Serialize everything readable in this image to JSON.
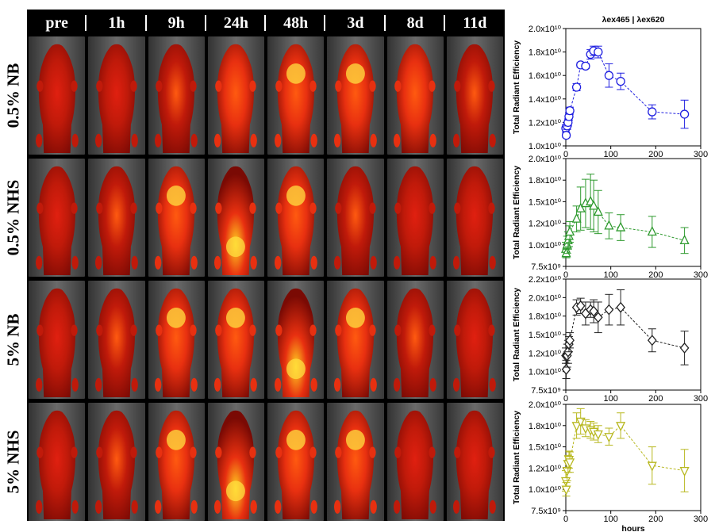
{
  "time_labels": [
    "pre",
    "1h",
    "9h",
    "24h",
    "48h",
    "3d",
    "8d",
    "11d"
  ],
  "row_labels": [
    "0.5% NB",
    "0.5% NHS",
    "5% NB",
    "5% NHS"
  ],
  "chart_title": "λex465 | λex620",
  "colors": {
    "series0": "#1f1fe0",
    "series1": "#2e9a2e",
    "series2": "#222222",
    "series3": "#b8b820"
  },
  "chart_data": [
    {
      "type": "scatter",
      "title": "λex465 | λex620",
      "marker": "circle",
      "ylabel": "Total Radiant Efficiency",
      "xlim": [
        0,
        300
      ],
      "ylim": [
        10000000000.0,
        20000000000.0
      ],
      "yticks": [
        "1.0x10¹⁰",
        "1.2x10¹⁰",
        "1.4x10¹⁰",
        "1.6x10¹⁰",
        "1.8x10¹⁰",
        "2.0x10¹⁰"
      ],
      "xticks": [
        "0",
        "100",
        "200",
        "300"
      ],
      "x": [
        0,
        1,
        3,
        5,
        7,
        9,
        24,
        33,
        44,
        55,
        62,
        72,
        96,
        122,
        192,
        264
      ],
      "y": [
        11500000000.0,
        10900000000.0,
        11700000000.0,
        12000000000.0,
        12500000000.0,
        13000000000.0,
        15000000000.0,
        16900000000.0,
        16800000000.0,
        17800000000.0,
        18100000000.0,
        18000000000.0,
        16000000000.0,
        15500000000.0,
        12900000000.0,
        12700000000.0
      ],
      "err": [
        300000000.0,
        200000000.0,
        300000000.0,
        300000000.0,
        300000000.0,
        300000000.0,
        300000000.0,
        200000000.0,
        200000000.0,
        400000000.0,
        400000000.0,
        500000000.0,
        1000000000.0,
        700000000.0,
        600000000.0,
        1200000000.0
      ]
    },
    {
      "type": "scatter",
      "marker": "triangle-up",
      "ylabel": "Total Radiant Efficiency",
      "xlim": [
        0,
        300
      ],
      "ylim": [
        7500000000.0,
        20000000000.0
      ],
      "yticks": [
        "7.5x10⁹",
        "1.0x10¹⁰",
        "1.2x10¹⁰",
        "1.5x10¹⁰",
        "1.8x10¹⁰",
        "2.0x10¹⁰"
      ],
      "xticks": [
        "0",
        "100",
        "200",
        "300"
      ],
      "x": [
        0,
        1,
        3,
        5,
        7,
        9,
        24,
        33,
        44,
        55,
        62,
        72,
        96,
        122,
        192,
        264
      ],
      "y": [
        9500000000.0,
        9000000000.0,
        10000000000.0,
        10500000000.0,
        11000000000.0,
        11500000000.0,
        13000000000.0,
        14200000000.0,
        14800000000.0,
        15000000000.0,
        14500000000.0,
        13800000000.0,
        12200000000.0,
        12000000000.0,
        11500000000.0,
        10500000000.0
      ],
      "err": [
        800000000.0,
        500000000.0,
        1000000000.0,
        1000000000.0,
        1200000000.0,
        1200000000.0,
        1500000000.0,
        2500000000.0,
        2800000000.0,
        3200000000.0,
        3000000000.0,
        2500000000.0,
        1500000000.0,
        1500000000.0,
        1800000000.0,
        1500000000.0
      ]
    },
    {
      "type": "scatter",
      "marker": "diamond",
      "ylabel": "Total Radiant Efficiency",
      "xlim": [
        0,
        300
      ],
      "ylim": [
        7500000000.0,
        22000000000.0
      ],
      "yticks": [
        "7.5x10⁹",
        "1.0x10¹⁰",
        "1.2x10¹⁰",
        "1.5x10¹⁰",
        "1.8x10¹⁰",
        "2.0x10¹⁰",
        "2.2x10¹⁰"
      ],
      "xticks": [
        "0",
        "100",
        "200",
        "300"
      ],
      "x": [
        0,
        1,
        3,
        5,
        7,
        9,
        24,
        33,
        44,
        55,
        62,
        72,
        96,
        122,
        192,
        264
      ],
      "y": [
        12000000000.0,
        10200000000.0,
        12000000000.0,
        12500000000.0,
        13500000000.0,
        14000000000.0,
        18300000000.0,
        18500000000.0,
        17500000000.0,
        18000000000.0,
        17800000000.0,
        17000000000.0,
        18000000000.0,
        18300000000.0,
        14000000000.0,
        13000000000.0
      ],
      "err": [
        1000000000.0,
        1200000000.0,
        1500000000.0,
        1500000000.0,
        1000000000.0,
        1000000000.0,
        1000000000.0,
        1000000000.0,
        1500000000.0,
        1000000000.0,
        1500000000.0,
        2000000000.0,
        2000000000.0,
        2300000000.0,
        1500000000.0,
        2200000000.0
      ]
    },
    {
      "type": "scatter",
      "marker": "triangle-down",
      "ylabel": "Total Radiant Efficiency",
      "xlabel": "hours",
      "xlim": [
        0,
        300
      ],
      "ylim": [
        7500000000.0,
        20000000000.0
      ],
      "yticks": [
        "7.5x10⁹",
        "1.0x10¹⁰",
        "1.2x10¹⁰",
        "1.5x10¹⁰",
        "1.8x10¹⁰",
        "2.0x10¹⁰"
      ],
      "xticks": [
        "0",
        "100",
        "200",
        "300"
      ],
      "x": [
        0,
        1,
        3,
        5,
        7,
        9,
        24,
        33,
        44,
        55,
        62,
        72,
        96,
        122,
        192,
        264
      ],
      "y": [
        11000000000.0,
        10000000000.0,
        12200000000.0,
        13000000000.0,
        13500000000.0,
        13200000000.0,
        17500000000.0,
        18000000000.0,
        17200000000.0,
        17000000000.0,
        16800000000.0,
        16500000000.0,
        16200000000.0,
        17500000000.0,
        12800000000.0,
        12200000000.0
      ],
      "err": [
        1200000000.0,
        800000000.0,
        1200000000.0,
        1000000000.0,
        1000000000.0,
        1200000000.0,
        1500000000.0,
        1500000000.0,
        1000000000.0,
        1000000000.0,
        1000000000.0,
        1000000000.0,
        1000000000.0,
        1500000000.0,
        2200000000.0,
        2500000000.0
      ]
    }
  ]
}
